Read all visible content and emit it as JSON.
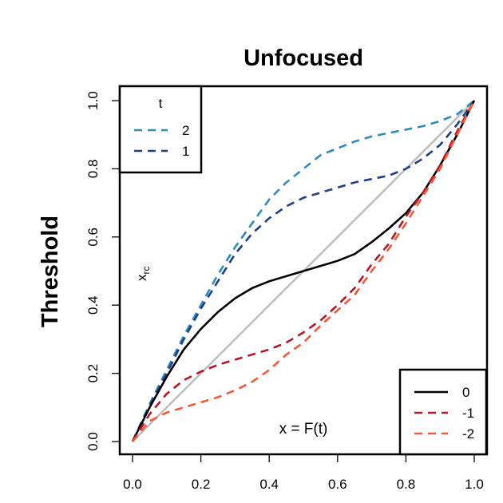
{
  "chart_data": {
    "type": "line",
    "title": "Unfocused",
    "xlabel": "",
    "ylabel": "Threshold",
    "xlim": [
      0,
      1
    ],
    "ylim": [
      0,
      1
    ],
    "x_ticks": [
      "0.0",
      "0.2",
      "0.4",
      "0.6",
      "0.8",
      "1.0"
    ],
    "y_ticks": [
      "0.0",
      "0.2",
      "0.4",
      "0.6",
      "0.8",
      "1.0"
    ],
    "annotations": {
      "x_rc": "x",
      "x_rc_sub": "rc",
      "x_eq": "x = F(t)"
    },
    "legend_top": {
      "title": "t",
      "position": "top-left",
      "entries": [
        {
          "label": "2",
          "color": "#2b8cbe",
          "dash": true
        },
        {
          "label": "1",
          "color": "#1c3f87",
          "dash": true
        }
      ]
    },
    "legend_bottom": {
      "position": "bottom-right",
      "entries": [
        {
          "label": "0",
          "color": "#000000",
          "dash": false
        },
        {
          "label": "-1",
          "color": "#b2182b",
          "dash": true
        },
        {
          "label": "-2",
          "color": "#ef5a3a",
          "dash": true
        }
      ]
    },
    "reference_line": {
      "color": "#bdbdbd",
      "points": [
        [
          0,
          0
        ],
        [
          1,
          1
        ]
      ]
    },
    "series": [
      {
        "key": "t2",
        "color": "#2b8cbe",
        "dash": true,
        "points": [
          [
            0,
            0
          ],
          [
            0.05,
            0.11
          ],
          [
            0.1,
            0.21
          ],
          [
            0.15,
            0.31
          ],
          [
            0.2,
            0.4
          ],
          [
            0.25,
            0.49
          ],
          [
            0.3,
            0.57
          ],
          [
            0.35,
            0.64
          ],
          [
            0.4,
            0.71
          ],
          [
            0.45,
            0.76
          ],
          [
            0.5,
            0.8
          ],
          [
            0.55,
            0.84
          ],
          [
            0.6,
            0.86
          ],
          [
            0.65,
            0.88
          ],
          [
            0.7,
            0.895
          ],
          [
            0.75,
            0.905
          ],
          [
            0.8,
            0.915
          ],
          [
            0.85,
            0.925
          ],
          [
            0.9,
            0.94
          ],
          [
            0.95,
            0.96
          ],
          [
            1,
            1
          ]
        ]
      },
      {
        "key": "t1",
        "color": "#1c3f87",
        "dash": true,
        "points": [
          [
            0,
            0
          ],
          [
            0.05,
            0.105
          ],
          [
            0.1,
            0.2
          ],
          [
            0.15,
            0.3
          ],
          [
            0.2,
            0.39
          ],
          [
            0.25,
            0.47
          ],
          [
            0.3,
            0.55
          ],
          [
            0.35,
            0.61
          ],
          [
            0.4,
            0.655
          ],
          [
            0.45,
            0.69
          ],
          [
            0.5,
            0.715
          ],
          [
            0.55,
            0.73
          ],
          [
            0.6,
            0.745
          ],
          [
            0.65,
            0.76
          ],
          [
            0.7,
            0.77
          ],
          [
            0.75,
            0.78
          ],
          [
            0.8,
            0.8
          ],
          [
            0.85,
            0.83
          ],
          [
            0.9,
            0.87
          ],
          [
            0.95,
            0.93
          ],
          [
            1,
            1
          ]
        ]
      },
      {
        "key": "t0",
        "color": "#000000",
        "dash": false,
        "points": [
          [
            0,
            0
          ],
          [
            0.05,
            0.1
          ],
          [
            0.1,
            0.19
          ],
          [
            0.15,
            0.27
          ],
          [
            0.2,
            0.33
          ],
          [
            0.25,
            0.38
          ],
          [
            0.3,
            0.42
          ],
          [
            0.35,
            0.45
          ],
          [
            0.4,
            0.47
          ],
          [
            0.45,
            0.485
          ],
          [
            0.5,
            0.5
          ],
          [
            0.55,
            0.515
          ],
          [
            0.6,
            0.53
          ],
          [
            0.65,
            0.55
          ],
          [
            0.7,
            0.585
          ],
          [
            0.75,
            0.625
          ],
          [
            0.8,
            0.67
          ],
          [
            0.85,
            0.73
          ],
          [
            0.9,
            0.81
          ],
          [
            0.95,
            0.9
          ],
          [
            1,
            1
          ]
        ]
      },
      {
        "key": "tm1",
        "color": "#b2182b",
        "dash": true,
        "points": [
          [
            0,
            0
          ],
          [
            0.05,
            0.08
          ],
          [
            0.1,
            0.14
          ],
          [
            0.15,
            0.18
          ],
          [
            0.2,
            0.205
          ],
          [
            0.25,
            0.225
          ],
          [
            0.3,
            0.24
          ],
          [
            0.35,
            0.255
          ],
          [
            0.4,
            0.27
          ],
          [
            0.45,
            0.29
          ],
          [
            0.5,
            0.32
          ],
          [
            0.55,
            0.355
          ],
          [
            0.6,
            0.4
          ],
          [
            0.65,
            0.45
          ],
          [
            0.7,
            0.52
          ],
          [
            0.75,
            0.58
          ],
          [
            0.8,
            0.66
          ],
          [
            0.85,
            0.73
          ],
          [
            0.9,
            0.81
          ],
          [
            0.95,
            0.91
          ],
          [
            1,
            1
          ]
        ]
      },
      {
        "key": "tm2",
        "color": "#ef5a3a",
        "dash": true,
        "points": [
          [
            0,
            0
          ],
          [
            0.05,
            0.06
          ],
          [
            0.1,
            0.085
          ],
          [
            0.15,
            0.1
          ],
          [
            0.2,
            0.115
          ],
          [
            0.25,
            0.13
          ],
          [
            0.3,
            0.15
          ],
          [
            0.35,
            0.175
          ],
          [
            0.4,
            0.21
          ],
          [
            0.45,
            0.255
          ],
          [
            0.5,
            0.29
          ],
          [
            0.55,
            0.34
          ],
          [
            0.6,
            0.385
          ],
          [
            0.65,
            0.43
          ],
          [
            0.7,
            0.5
          ],
          [
            0.75,
            0.565
          ],
          [
            0.8,
            0.64
          ],
          [
            0.85,
            0.72
          ],
          [
            0.9,
            0.8
          ],
          [
            0.95,
            0.9
          ],
          [
            1,
            1
          ]
        ]
      }
    ]
  }
}
